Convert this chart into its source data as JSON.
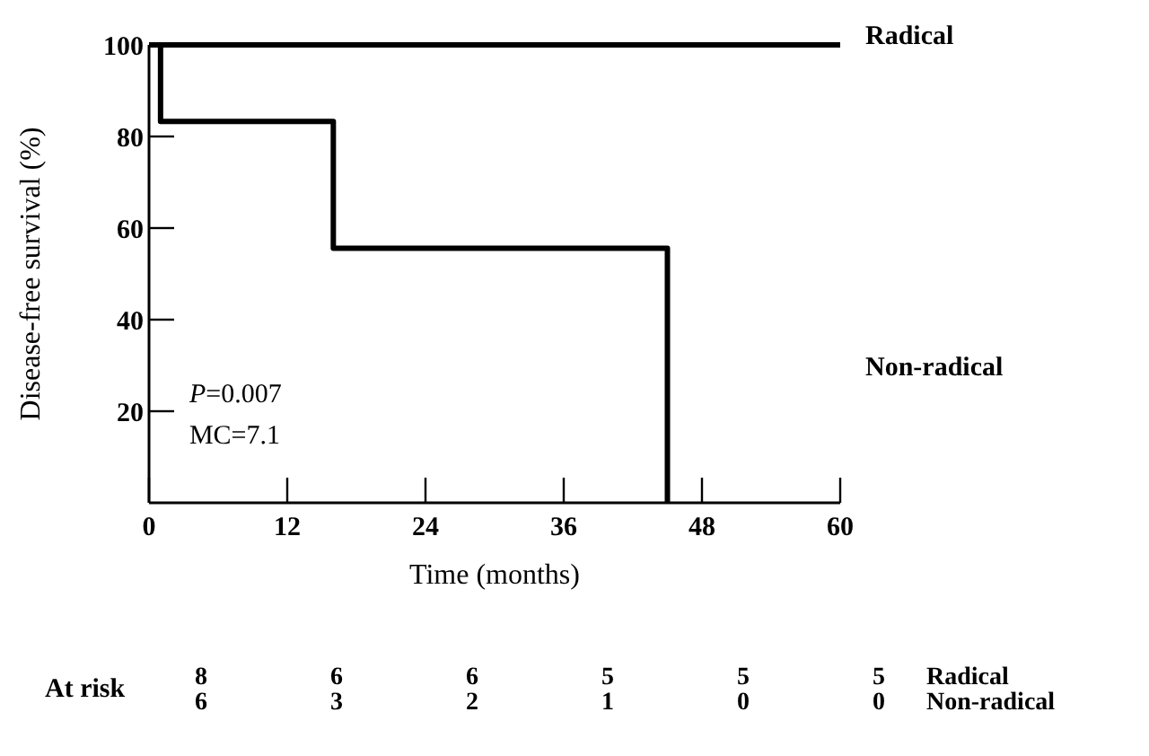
{
  "chart_data": {
    "type": "step",
    "xlabel": "Time (months)",
    "ylabel": "Disease-free survival (%)",
    "xlim": [
      0,
      60
    ],
    "xticks": [
      0,
      12,
      24,
      36,
      48,
      60
    ],
    "ylim": [
      0,
      100
    ],
    "yticks": [
      20,
      40,
      60,
      80,
      100
    ],
    "grid": false,
    "marker": "none",
    "line_style": "solid",
    "series": [
      {
        "name": "Radical",
        "color": "#000000",
        "x": [
          0,
          60
        ],
        "values": [
          100,
          100
        ]
      },
      {
        "name": "Non-radical",
        "color": "#000000",
        "x": [
          0,
          1,
          16,
          45
        ],
        "values": [
          100,
          83.3,
          55.6,
          0
        ]
      }
    ],
    "annotations": [
      "P=0.007",
      "MC=7.1",
      "At risk",
      "8",
      "6",
      "6",
      "5",
      "5",
      "5",
      "6",
      "3",
      "2",
      "1",
      "0",
      "0"
    ]
  }
}
